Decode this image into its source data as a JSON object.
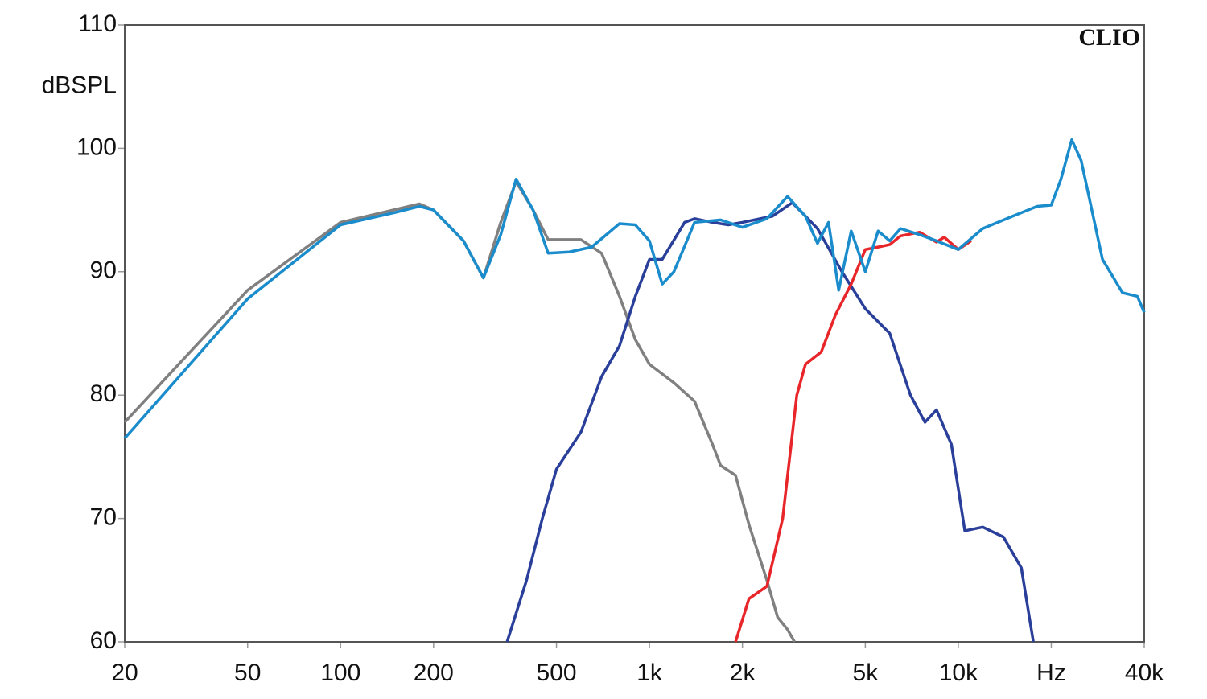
{
  "chart_data": {
    "type": "line",
    "annotation": "CLIO",
    "ylabel": "dBSPL",
    "log_x": true,
    "xlim": [
      20,
      40000
    ],
    "ylim": [
      60,
      110
    ],
    "xticks": [
      20,
      50,
      100,
      200,
      500,
      {
        "value": 1000,
        "label": "1k"
      },
      {
        "value": 2000,
        "label": "2k"
      },
      {
        "value": 5000,
        "label": "5k"
      },
      {
        "value": 10000,
        "label": "10k"
      },
      {
        "value": 20000,
        "label": "Hz"
      },
      {
        "value": 40000,
        "label": "40k"
      }
    ],
    "yticks": [
      60,
      70,
      80,
      90,
      100,
      110
    ],
    "xgrid": [
      30,
      40,
      60,
      70,
      80,
      90,
      300,
      400,
      600,
      700,
      800,
      900,
      3000,
      4000,
      6000,
      7000,
      8000,
      9000,
      30000
    ],
    "ygrid": [
      65,
      75,
      85,
      95,
      105
    ],
    "series": [
      {
        "color": "#808080",
        "x": [
          20,
          50,
          100,
          180,
          200,
          250,
          290,
          330,
          370,
          420,
          470,
          600,
          700,
          800,
          900,
          1000,
          1200,
          1400,
          1600,
          1700,
          1900,
          2100,
          2400,
          2600,
          2800,
          2950
        ],
        "values": [
          77.8,
          88.5,
          94,
          95.5,
          95,
          92.5,
          89.5,
          94,
          97.3,
          95,
          92.6,
          92.6,
          91.5,
          88,
          84.5,
          82.5,
          81,
          79.5,
          76,
          74.3,
          73.5,
          69.5,
          65,
          62,
          61,
          60
        ]
      },
      {
        "color": "#2a3f9a",
        "x": [
          346,
          400,
          450,
          500,
          600,
          700,
          800,
          900,
          1000,
          1100,
          1300,
          1400,
          1600,
          1800,
          2000,
          2500,
          2900,
          3500,
          4200,
          5000,
          6000,
          7000,
          7800,
          8500,
          9500,
          10500,
          12000,
          14000,
          16000,
          17500
        ],
        "values": [
          60,
          65,
          70,
          74,
          77,
          81.5,
          84,
          88,
          91,
          91,
          94,
          94.3,
          94,
          93.8,
          94,
          94.5,
          95.6,
          93.5,
          90,
          87,
          85,
          80,
          77.8,
          78.8,
          76,
          69,
          69.3,
          68.5,
          66,
          60
        ]
      },
      {
        "color": "#e8262a",
        "x": [
          1900,
          2100,
          2400,
          2700,
          3000,
          3200,
          3600,
          4000,
          4500,
          5000,
          5500,
          6000,
          6500,
          7500,
          8500,
          9000,
          10000,
          11000
        ],
        "values": [
          60,
          63.5,
          64.5,
          70,
          80,
          82.5,
          83.5,
          86.5,
          89,
          91.8,
          92,
          92.2,
          92.9,
          93.2,
          92.4,
          92.8,
          91.8,
          92.5
        ]
      },
      {
        "color": "#1a8ccc",
        "x": [
          20,
          50,
          100,
          150,
          180,
          200,
          250,
          290,
          330,
          370,
          420,
          470,
          550,
          650,
          800,
          900,
          1000,
          1100,
          1200,
          1400,
          1700,
          2000,
          2400,
          2800,
          3200,
          3500,
          3800,
          4100,
          4500,
          5000,
          5500,
          6000,
          6500,
          7500,
          8500,
          10000,
          12000,
          15000,
          18000,
          20000,
          21500,
          23300,
          25000,
          29300,
          34000,
          38000,
          40000
        ],
        "values": [
          76.5,
          87.8,
          93.8,
          94.8,
          95.3,
          95,
          92.5,
          89.5,
          93,
          97.5,
          95,
          91.5,
          91.6,
          92,
          93.9,
          93.8,
          92.5,
          89,
          90,
          94,
          94.2,
          93.6,
          94.3,
          96.1,
          94.5,
          92.3,
          94,
          88.5,
          93.3,
          90,
          93.3,
          92.5,
          93.5,
          93,
          92.5,
          91.8,
          93.5,
          94.5,
          95.3,
          95.4,
          97.5,
          100.7,
          99,
          91,
          88.3,
          88,
          86.7
        ]
      }
    ]
  }
}
